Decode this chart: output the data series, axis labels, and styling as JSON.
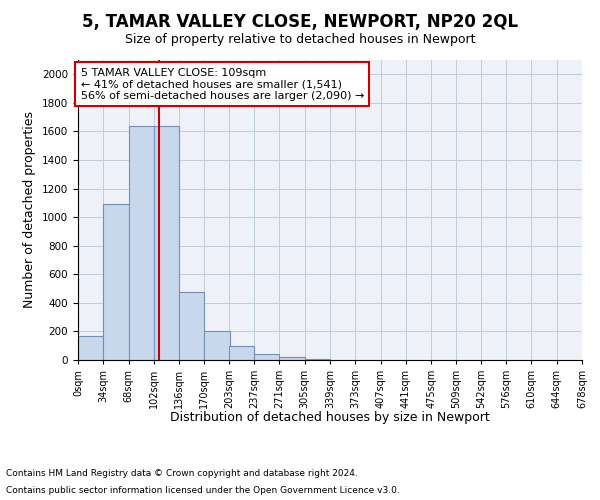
{
  "title": "5, TAMAR VALLEY CLOSE, NEWPORT, NP20 2QL",
  "subtitle": "Size of property relative to detached houses in Newport",
  "xlabel": "Distribution of detached houses by size in Newport",
  "ylabel": "Number of detached properties",
  "footnote1": "Contains HM Land Registry data © Crown copyright and database right 2024.",
  "footnote2": "Contains public sector information licensed under the Open Government Licence v3.0.",
  "annotation_line1": "5 TAMAR VALLEY CLOSE: 109sqm",
  "annotation_line2": "← 41% of detached houses are smaller (1,541)",
  "annotation_line3": "56% of semi-detached houses are larger (2,090) →",
  "bar_color": "#c8d8ec",
  "bar_edge_color": "#7090b8",
  "grid_color": "#c0ccd8",
  "background_color": "#eef2f8",
  "red_line_color": "#cc0000",
  "annotation_box_color": "#cc0000",
  "bin_labels": [
    "0sqm",
    "34sqm",
    "68sqm",
    "102sqm",
    "136sqm",
    "170sqm",
    "203sqm",
    "237sqm",
    "271sqm",
    "305sqm",
    "339sqm",
    "373sqm",
    "407sqm",
    "441sqm",
    "475sqm",
    "509sqm",
    "542sqm",
    "576sqm",
    "610sqm",
    "644sqm",
    "678sqm"
  ],
  "bin_edges": [
    0,
    34,
    68,
    102,
    136,
    170,
    203,
    237,
    271,
    305,
    339,
    373,
    407,
    441,
    475,
    509,
    542,
    576,
    610,
    644,
    678
  ],
  "bar_heights": [
    165,
    1090,
    1640,
    1640,
    475,
    200,
    100,
    40,
    20,
    10,
    0,
    0,
    0,
    0,
    0,
    0,
    0,
    0,
    0,
    0
  ],
  "ylim": [
    0,
    2100
  ],
  "red_line_x": 109,
  "title_fontsize": 12,
  "subtitle_fontsize": 9,
  "ylabel_fontsize": 9,
  "xlabel_fontsize": 9,
  "tick_fontsize": 7,
  "footnote_fontsize": 6.5,
  "annotation_fontsize": 8
}
